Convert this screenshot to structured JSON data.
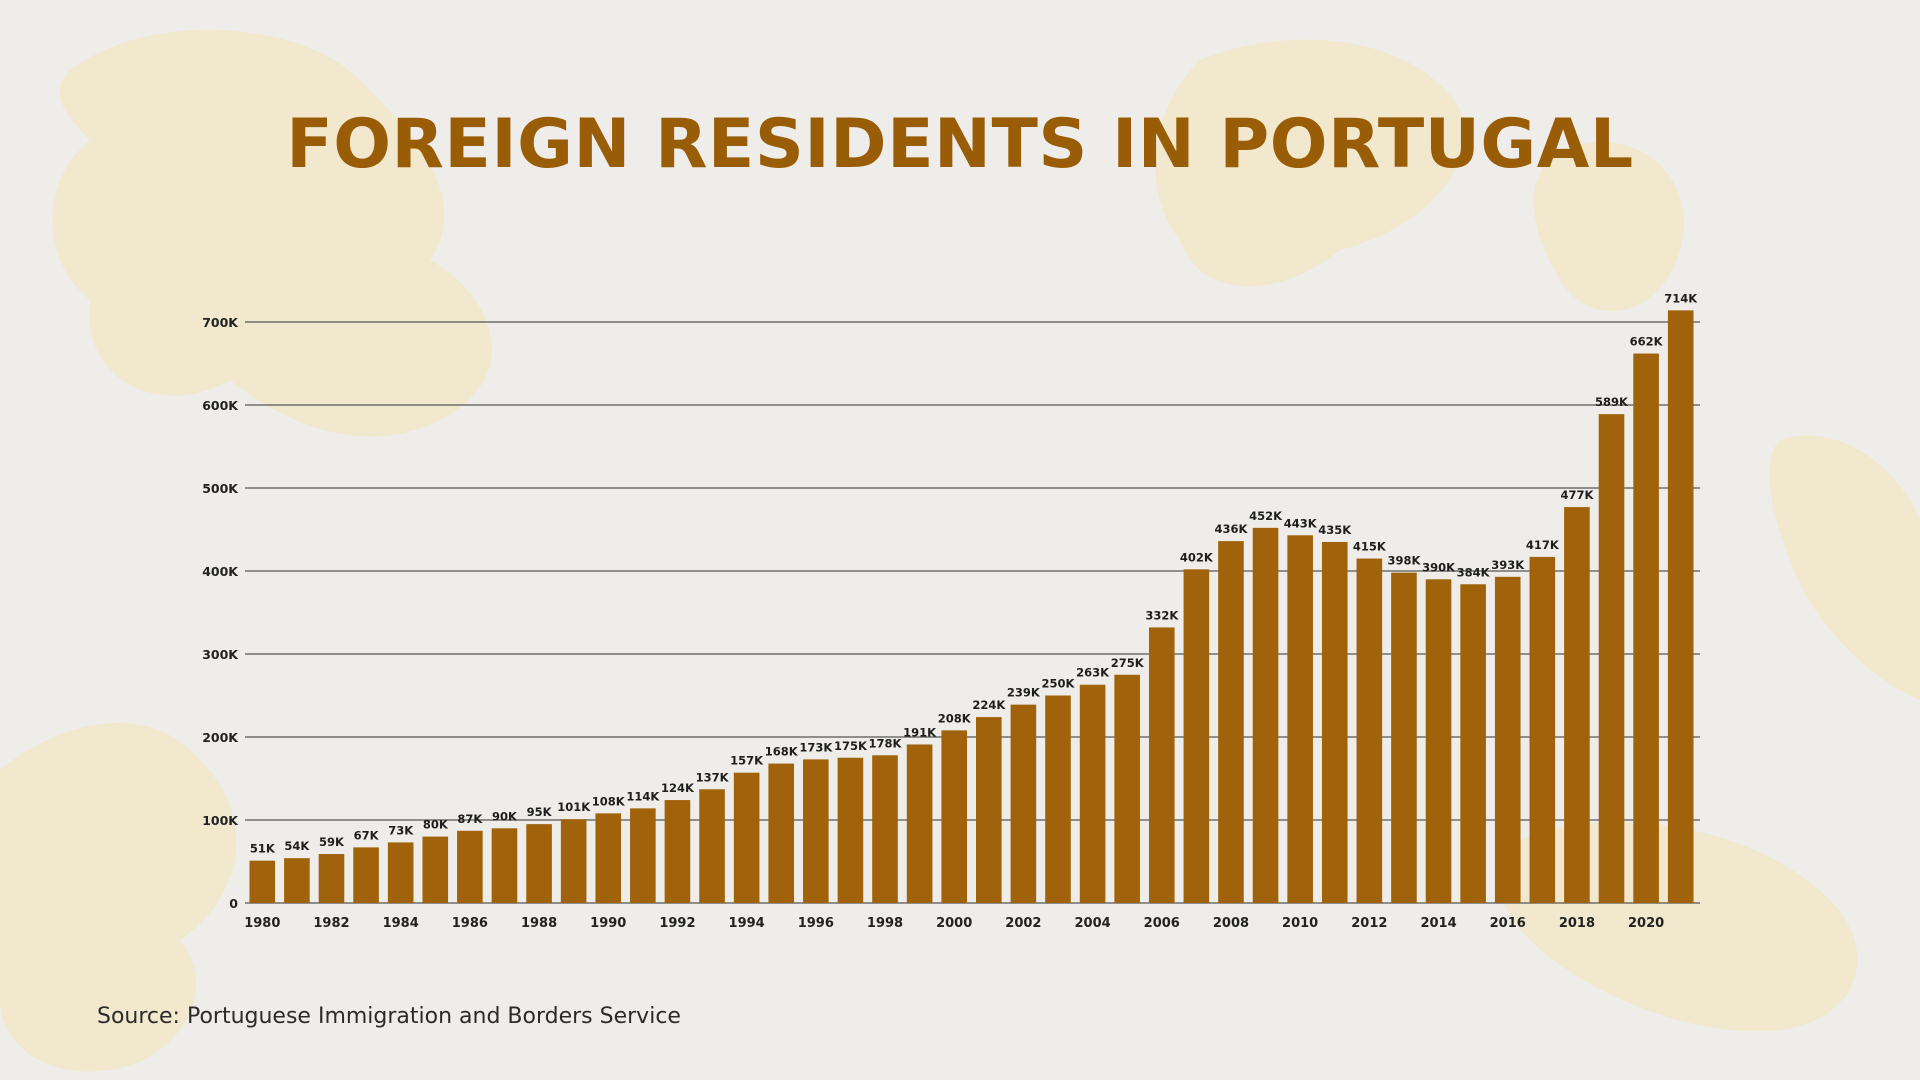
{
  "title": "FOREIGN RESIDENTS IN PORTUGAL",
  "source": "Source: Portuguese Immigration and Borders Service",
  "colors": {
    "bar": "#a0620a",
    "title": "#9a5d07",
    "grid": "#555555",
    "background": "#eeedea",
    "decoration": "#f2e6c4"
  },
  "chart_data": {
    "type": "bar",
    "title": "FOREIGN RESIDENTS IN PORTUGAL",
    "xlabel": "",
    "ylabel": "",
    "ylim": [
      0,
      700000
    ],
    "grid": true,
    "legend": "none",
    "y_ticks": [
      0,
      100000,
      200000,
      300000,
      400000,
      500000,
      600000,
      700000
    ],
    "y_tick_labels": [
      "0",
      "100K",
      "200K",
      "300K",
      "400K",
      "500K",
      "600K",
      "700K"
    ],
    "categories": [
      "1980",
      "1981",
      "1982",
      "1983",
      "1984",
      "1985",
      "1986",
      "1987",
      "1988",
      "1989",
      "1990",
      "1991",
      "1992",
      "1993",
      "1994",
      "1995",
      "1996",
      "1997",
      "1998",
      "1999",
      "2000",
      "2001",
      "2002",
      "2003",
      "2004",
      "2005",
      "2006",
      "2007",
      "2008",
      "2009",
      "2010",
      "2011",
      "2012",
      "2013",
      "2014",
      "2015",
      "2016",
      "2017",
      "2018",
      "2019",
      "2020",
      "2021"
    ],
    "x_tick_labels": [
      "1980",
      "",
      "1982",
      "",
      "1984",
      "",
      "1986",
      "",
      "1988",
      "",
      "1990",
      "",
      "1992",
      "",
      "1994",
      "",
      "1996",
      "",
      "1998",
      "",
      "2000",
      "",
      "2002",
      "",
      "2004",
      "",
      "2006",
      "",
      "2008",
      "",
      "2010",
      "",
      "2012",
      "",
      "2014",
      "",
      "2016",
      "",
      "2018",
      "",
      "2020",
      ""
    ],
    "values": [
      51000,
      54000,
      59000,
      67000,
      73000,
      80000,
      87000,
      90000,
      95000,
      101000,
      108000,
      114000,
      124000,
      137000,
      157000,
      168000,
      173000,
      175000,
      178000,
      191000,
      208000,
      224000,
      239000,
      250000,
      263000,
      275000,
      332000,
      402000,
      436000,
      452000,
      443000,
      435000,
      415000,
      398000,
      390000,
      384000,
      393000,
      417000,
      477000,
      589000,
      662000,
      714000
    ],
    "data_labels": [
      "51K",
      "54K",
      "59K",
      "67K",
      "73K",
      "80K",
      "87K",
      "90K",
      "95K",
      "101K",
      "108K",
      "114K",
      "124K",
      "137K",
      "157K",
      "168K",
      "173K",
      "175K",
      "178K",
      "191K",
      "208K",
      "224K",
      "239K",
      "250K",
      "263K",
      "275K",
      "332K",
      "402K",
      "436K",
      "452K",
      "443K",
      "435K",
      "415K",
      "398K",
      "390K",
      "384K",
      "393K",
      "417K",
      "477K",
      "589K",
      "662K",
      "714K"
    ]
  }
}
